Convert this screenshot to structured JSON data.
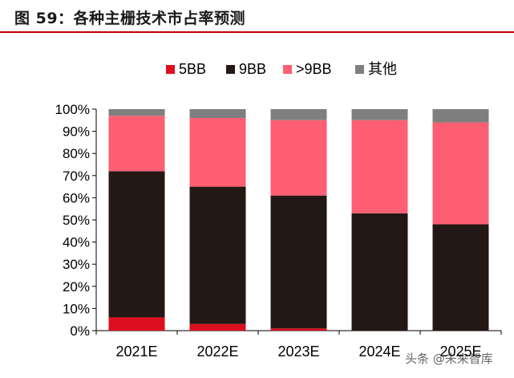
{
  "title": "图 59：各种主栅技术市占率预测",
  "watermark": "头条 @未来智库",
  "chart_data": {
    "type": "bar",
    "stacked": true,
    "percent": true,
    "categories": [
      "2021E",
      "2022E",
      "2023E",
      "2024E",
      "2025E"
    ],
    "series": [
      {
        "name": "5BB",
        "color": "#dc0f1e",
        "values": [
          6,
          3,
          1,
          0,
          0
        ]
      },
      {
        "name": "9BB",
        "color": "#231815",
        "values": [
          66,
          62,
          60,
          53,
          48
        ]
      },
      {
        "name": ">9BB",
        "color": "#ff5f72",
        "values": [
          25,
          31,
          34,
          42,
          46
        ]
      },
      {
        "name": "其他",
        "color": "#7f7f7f",
        "values": [
          3,
          4,
          5,
          5,
          6
        ]
      }
    ],
    "ylim": [
      0,
      100
    ],
    "yticks": [
      "0%",
      "10%",
      "20%",
      "30%",
      "40%",
      "50%",
      "60%",
      "70%",
      "80%",
      "90%",
      "100%"
    ],
    "legend_position": "top",
    "grid": false
  }
}
